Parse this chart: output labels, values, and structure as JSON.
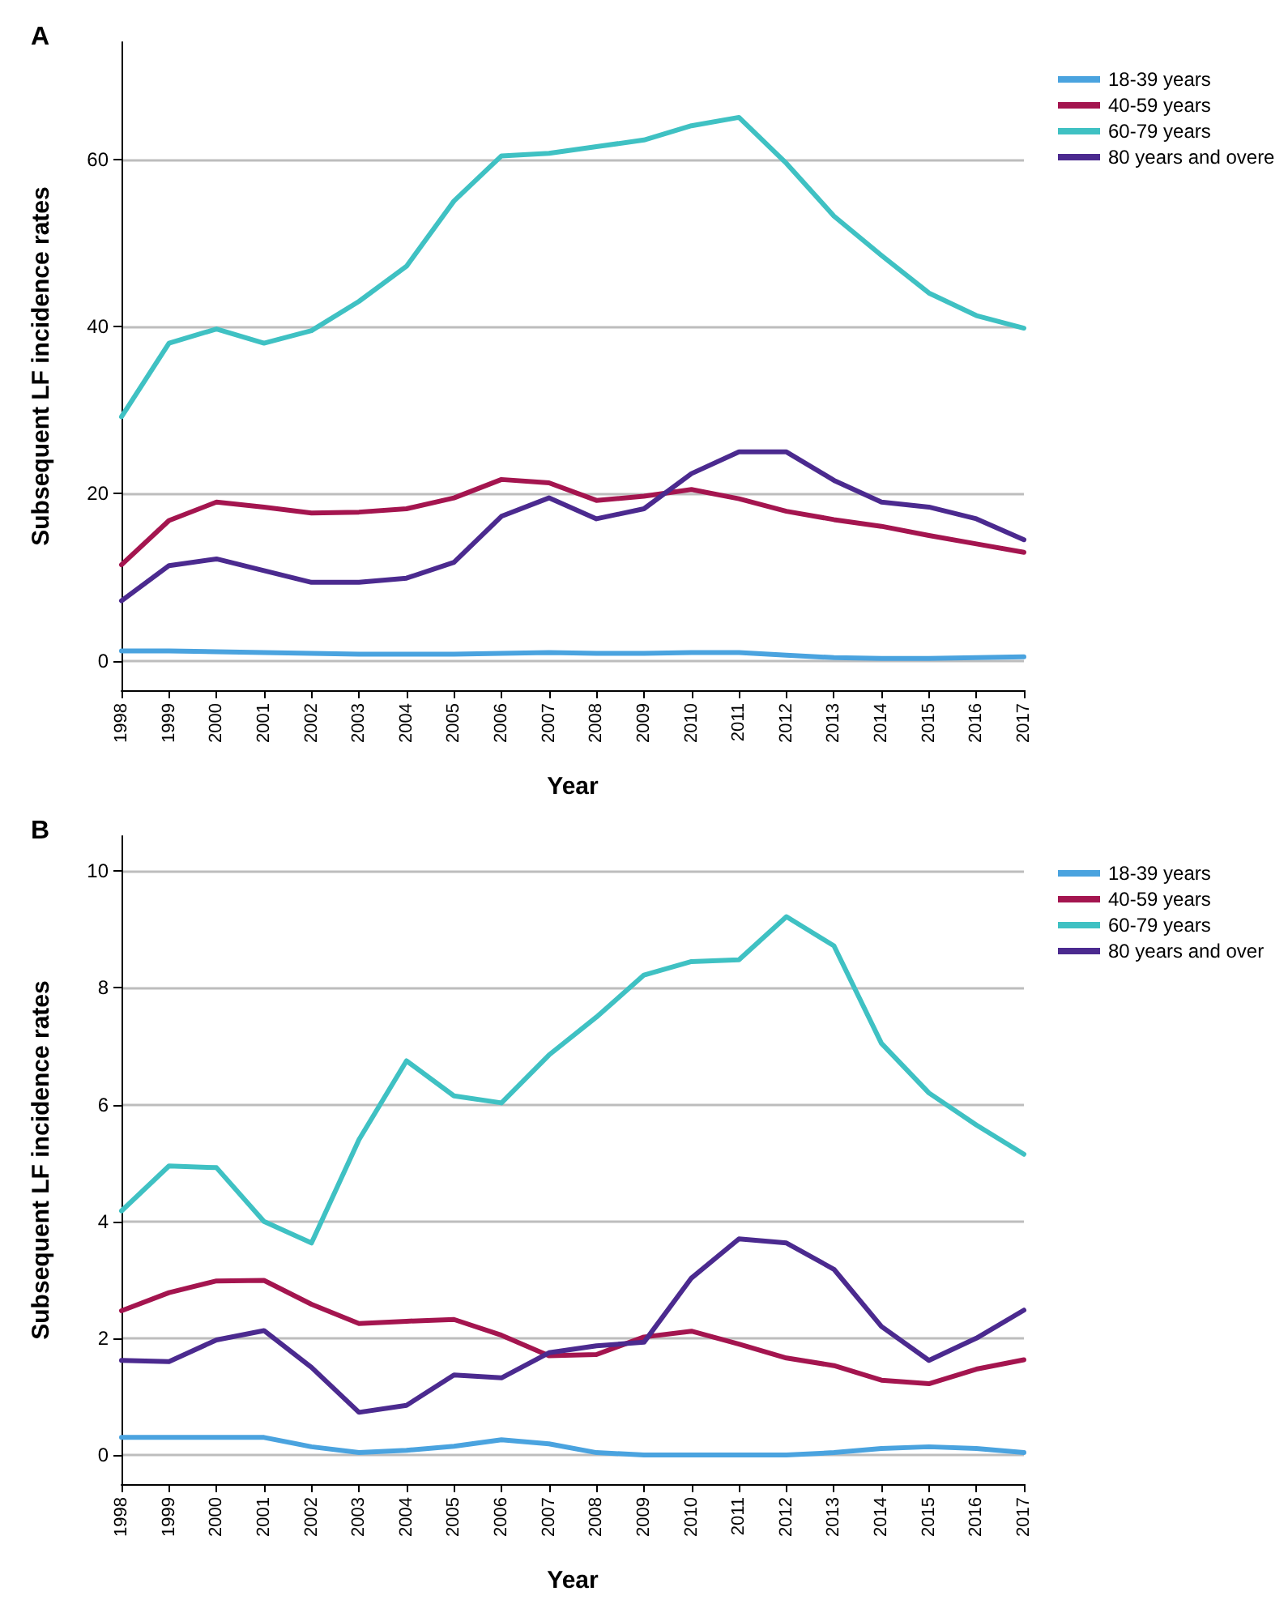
{
  "chart_data": [
    {
      "type": "line",
      "title": "A",
      "xlabel": "Year",
      "ylabel": "Subsequent LF incidence rates",
      "categories": [
        "1998",
        "1999",
        "2000",
        "2001",
        "2002",
        "2003",
        "2004",
        "2005",
        "2006",
        "2007",
        "2008",
        "2009",
        "2010",
        "2011",
        "2012",
        "2013",
        "2014",
        "2015",
        "2016",
        "2017"
      ],
      "ylim": [
        -3.5,
        74
      ],
      "yticks": [
        0,
        20,
        40,
        60
      ],
      "grid": "y",
      "legend": "top right",
      "marker": "none",
      "line_style": "solid",
      "series": [
        {
          "name": "18-39 years",
          "color": "#4aa3df",
          "values": [
            1.2,
            1.2,
            1.1,
            1.0,
            0.9,
            0.8,
            0.8,
            0.8,
            0.9,
            1.0,
            0.9,
            0.9,
            1.0,
            1.0,
            0.7,
            0.4,
            0.3,
            0.3,
            0.4,
            0.5
          ]
        },
        {
          "name": "40-59 years",
          "color": "#a4154f",
          "values": [
            11.5,
            16.8,
            19,
            18.4,
            17.7,
            17.8,
            18.2,
            19.5,
            21.7,
            21.3,
            19.2,
            19.7,
            20.5,
            19.4,
            17.9,
            16.9,
            16.1,
            15,
            14,
            13
          ]
        },
        {
          "name": "60-79 years",
          "color": "#3fc1c3",
          "values": [
            29.2,
            38,
            39.7,
            38,
            39.5,
            43,
            47.2,
            55,
            60.4,
            60.7,
            61.5,
            62.3,
            64,
            65,
            59.5,
            53.2,
            48.5,
            44,
            41.3,
            39.8
          ]
        },
        {
          "name": "80 years and overe",
          "color": "#4b2a8f",
          "values": [
            7.2,
            11.4,
            12.2,
            10.8,
            9.4,
            9.4,
            9.9,
            11.8,
            17.3,
            19.5,
            17,
            18.2,
            22.4,
            25,
            25,
            21.6,
            19,
            18.4,
            17,
            14.5
          ]
        }
      ]
    },
    {
      "type": "line",
      "title": "B",
      "xlabel": "Year",
      "ylabel": "Subsequent LF incidence rates",
      "categories": [
        "1998",
        "1999",
        "2000",
        "2001",
        "2002",
        "2003",
        "2004",
        "2005",
        "2006",
        "2007",
        "2008",
        "2009",
        "2010",
        "2011",
        "2012",
        "2013",
        "2014",
        "2015",
        "2016",
        "2017"
      ],
      "ylim": [
        -0.5,
        10.6
      ],
      "yticks": [
        0,
        2,
        4,
        6,
        8,
        10
      ],
      "grid": "y",
      "legend": "top right",
      "marker": "none",
      "line_style": "solid",
      "series": [
        {
          "name": "18-39 years",
          "color": "#4aa3df",
          "values": [
            0.3,
            0.3,
            0.3,
            0.3,
            0.14,
            0.04,
            0.08,
            0.15,
            0.26,
            0.19,
            0.04,
            0.0,
            0.0,
            0.0,
            0.0,
            0.04,
            0.11,
            0.14,
            0.11,
            0.04
          ]
        },
        {
          "name": "40-59 years",
          "color": "#a4154f",
          "values": [
            2.47,
            2.78,
            2.98,
            2.99,
            2.58,
            2.25,
            2.29,
            2.32,
            2.05,
            1.7,
            1.72,
            2.02,
            2.12,
            1.9,
            1.66,
            1.53,
            1.28,
            1.22,
            1.47,
            1.63
          ]
        },
        {
          "name": "60-79 years",
          "color": "#3fc1c3",
          "values": [
            4.18,
            4.95,
            4.92,
            4.0,
            3.63,
            5.4,
            6.75,
            6.15,
            6.03,
            6.85,
            7.5,
            8.22,
            8.45,
            8.48,
            9.22,
            8.72,
            7.05,
            6.2,
            5.65,
            5.15
          ]
        },
        {
          "name": "80 years and over",
          "color": "#4b2a8f",
          "values": [
            1.62,
            1.6,
            1.97,
            2.13,
            1.5,
            0.73,
            0.85,
            1.37,
            1.32,
            1.75,
            1.87,
            1.93,
            3.03,
            3.7,
            3.63,
            3.18,
            2.2,
            1.62,
            2.0,
            2.48
          ]
        }
      ]
    }
  ]
}
